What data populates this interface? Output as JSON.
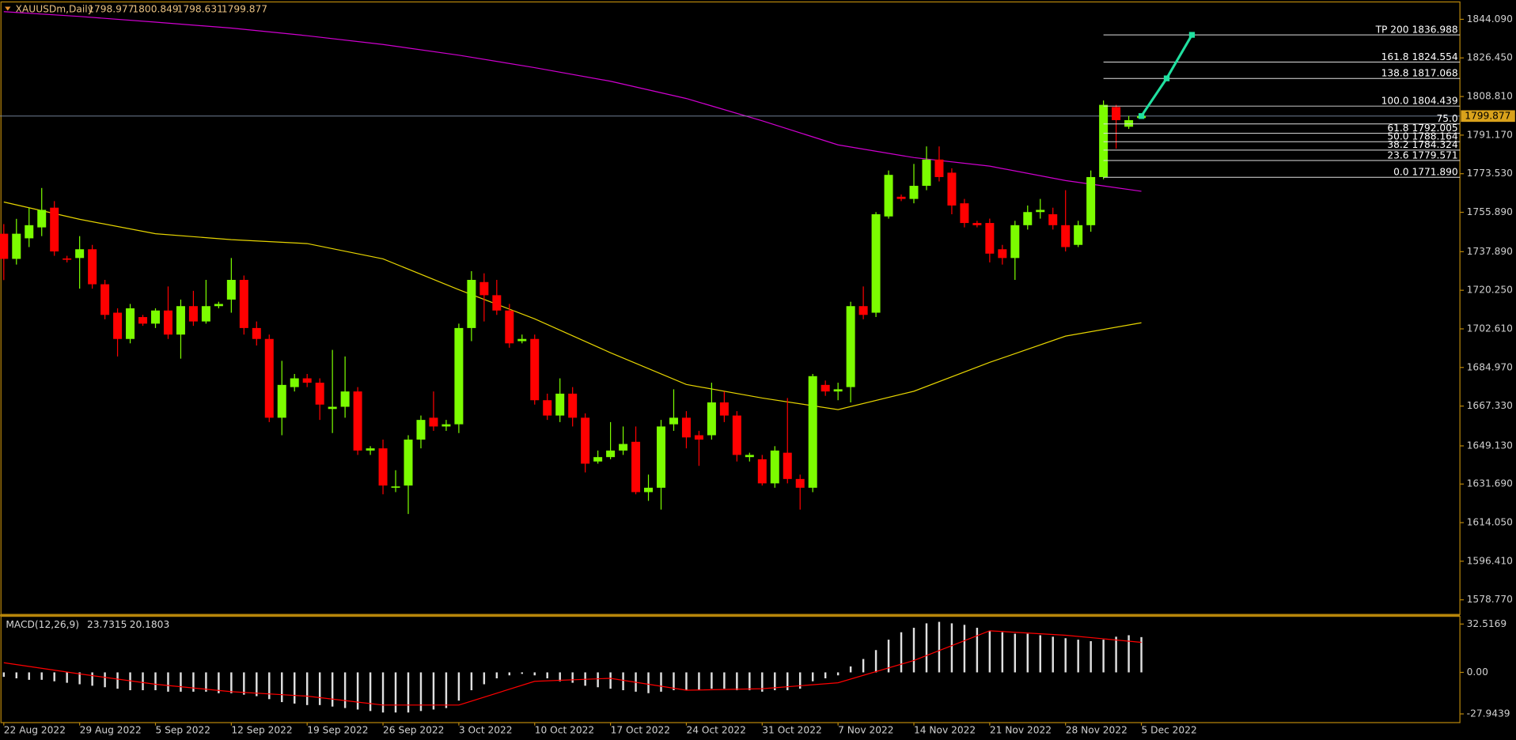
{
  "chart_data": {
    "type": "candlestick",
    "symbol": "XAUUSDm,Daily",
    "up_color": "#7cfc00",
    "down_color": "#ff0000",
    "xlim": [
      -0.3,
      115.2
    ],
    "ylim": [
      1572.1,
      1851.6
    ],
    "open": [
      1746.1,
      1734.6,
      1744,
      1749,
      1758,
      1734.8,
      1735,
      1739,
      1723,
      1710,
      1698,
      1708,
      1705,
      1711,
      1700,
      1713,
      1706,
      1713,
      1716,
      1725,
      1703,
      1698,
      1662,
      1676,
      1680,
      1678,
      1666,
      1667,
      1674,
      1647,
      1648,
      1630,
      1631,
      1652,
      1662,
      1658,
      1659,
      1703,
      1724,
      1718,
      1711,
      1697,
      1698,
      1670,
      1663,
      1673,
      1662,
      1642,
      1644,
      1647,
      1651,
      1628,
      1630,
      1659,
      1662,
      1654,
      1654,
      1669,
      1663,
      1644,
      1643,
      1632,
      1646,
      1634,
      1630,
      1677,
      1674,
      1676,
      1713,
      1710,
      1754,
      1763,
      1762,
      1768,
      1780,
      1774,
      1760,
      1751,
      1751,
      1739,
      1735,
      1750,
      1756,
      1755,
      1750,
      1741,
      1750,
      1772,
      1804,
      1795,
      1798.977
    ],
    "high": [
      1750.5,
      1752.9,
      1758,
      1767,
      1761,
      1736,
      1745,
      1741,
      1725,
      1712,
      1714,
      1709,
      1712,
      1722,
      1716,
      1720,
      1725,
      1715,
      1735,
      1727,
      1706,
      1700,
      1688,
      1682,
      1682,
      1680,
      1693,
      1690,
      1676,
      1649,
      1652,
      1638,
      1654,
      1663,
      1674,
      1661,
      1705,
      1729,
      1728,
      1725,
      1714,
      1700,
      1700,
      1673,
      1680,
      1676,
      1664,
      1647,
      1660,
      1658,
      1658,
      1636,
      1661,
      1675,
      1665,
      1656,
      1678,
      1674,
      1665,
      1646,
      1645,
      1649,
      1671,
      1636,
      1682,
      1679,
      1678,
      1715,
      1722,
      1756,
      1775,
      1764,
      1778,
      1786,
      1786,
      1776,
      1762,
      1752,
      1753,
      1741,
      1752,
      1759,
      1762,
      1758,
      1766,
      1752,
      1775,
      1807,
      1805,
      1800,
      1800.849
    ],
    "low": [
      1724.9,
      1732,
      1740,
      1745,
      1736,
      1733,
      1721,
      1721,
      1707,
      1690,
      1696,
      1704,
      1703,
      1698,
      1689,
      1704,
      1705,
      1712,
      1710,
      1700,
      1695,
      1660,
      1654,
      1674,
      1676,
      1661,
      1655,
      1662,
      1645,
      1645,
      1627,
      1628,
      1618,
      1648,
      1656,
      1656,
      1655,
      1697,
      1706,
      1709,
      1694,
      1696,
      1668,
      1661,
      1660,
      1658,
      1637,
      1641,
      1643,
      1645,
      1627,
      1624,
      1620,
      1656,
      1648,
      1640,
      1652,
      1660,
      1642,
      1642,
      1631,
      1630,
      1632,
      1620,
      1628,
      1672,
      1670,
      1669,
      1707,
      1708,
      1753,
      1761,
      1760,
      1766,
      1770,
      1755,
      1749,
      1749,
      1733,
      1732,
      1725,
      1748,
      1753,
      1748,
      1738,
      1740,
      1747,
      1771,
      1785,
      1794,
      1798.631
    ],
    "close": [
      1734.6,
      1746.1,
      1750,
      1757,
      1738,
      1734.2,
      1739,
      1723,
      1709,
      1698,
      1712,
      1705,
      1711,
      1700,
      1713,
      1706,
      1713,
      1714,
      1725,
      1703,
      1698,
      1662,
      1677,
      1680,
      1678,
      1668,
      1667,
      1674,
      1647,
      1648,
      1631,
      1630.6,
      1652,
      1661,
      1658,
      1659,
      1703,
      1725,
      1718,
      1711,
      1696,
      1698,
      1670,
      1663,
      1673,
      1662,
      1641,
      1644,
      1647,
      1650,
      1628,
      1630,
      1658,
      1662,
      1653,
      1652,
      1669,
      1663,
      1645,
      1645,
      1632,
      1647,
      1634,
      1630,
      1681,
      1674,
      1675,
      1713,
      1709,
      1755,
      1773,
      1762,
      1768,
      1780,
      1772,
      1759,
      1751,
      1750,
      1737,
      1735,
      1750,
      1756,
      1757,
      1750,
      1740,
      1750,
      1772,
      1805,
      1798,
      1798,
      1799.877
    ],
    "yticks": [
      {
        "value": 1844.09,
        "label": "1844.090"
      },
      {
        "value": 1826.45,
        "label": "1826.450"
      },
      {
        "value": 1808.81,
        "label": "1808.810"
      },
      {
        "value": 1791.17,
        "label": "1791.170"
      },
      {
        "value": 1773.53,
        "label": "1773.530"
      },
      {
        "value": 1755.89,
        "label": "1755.890"
      },
      {
        "value": 1737.89,
        "label": "1737.890"
      },
      {
        "value": 1720.25,
        "label": "1720.250"
      },
      {
        "value": 1702.61,
        "label": "1702.610"
      },
      {
        "value": 1684.97,
        "label": "1684.970"
      },
      {
        "value": 1667.33,
        "label": "1667.330"
      },
      {
        "value": 1649.13,
        "label": "1649.130"
      },
      {
        "value": 1631.69,
        "label": "1631.690"
      },
      {
        "value": 1614.05,
        "label": "1614.050"
      },
      {
        "value": 1596.41,
        "label": "1596.410"
      },
      {
        "value": 1578.77,
        "label": "1578.770"
      }
    ],
    "xticks": [
      {
        "value": 0,
        "label": "22 Aug 2022"
      },
      {
        "value": 6,
        "label": "29 Aug 2022"
      },
      {
        "value": 12,
        "label": "5 Sep 2022"
      },
      {
        "value": 18,
        "label": "12 Sep 2022"
      },
      {
        "value": 24,
        "label": "19 Sep 2022"
      },
      {
        "value": 30,
        "label": "26 Sep 2022"
      },
      {
        "value": 36,
        "label": "3 Oct 2022"
      },
      {
        "value": 42,
        "label": "10 Oct 2022"
      },
      {
        "value": 48,
        "label": "17 Oct 2022"
      },
      {
        "value": 54,
        "label": "24 Oct 2022"
      },
      {
        "value": 60,
        "label": "31 Oct 2022"
      },
      {
        "value": 66,
        "label": "7 Nov 2022"
      },
      {
        "value": 72,
        "label": "14 Nov 2022"
      },
      {
        "value": 78,
        "label": "21 Nov 2022"
      },
      {
        "value": 84,
        "label": "28 Nov 2022"
      },
      {
        "value": 90,
        "label": "5 Dec 2022"
      }
    ],
    "moving_averages": [
      {
        "color": "#e6d400",
        "x": [
          0,
          6,
          12,
          18,
          24,
          30,
          36,
          42,
          48,
          54,
          60,
          66,
          72,
          78,
          84,
          90
        ],
        "values": [
          1760.6,
          1752.7,
          1746.1,
          1743.4,
          1741.6,
          1734.6,
          1720.5,
          1707.2,
          1691.7,
          1677.2,
          1671.0,
          1665.7,
          1674.1,
          1687.3,
          1699.3,
          1705.4
        ]
      },
      {
        "color": "#d000d0",
        "x": [
          0,
          6,
          12,
          18,
          24,
          30,
          36,
          42,
          48,
          54,
          60,
          66,
          72,
          78,
          84,
          90
        ],
        "values": [
          1847.6,
          1845.4,
          1842.8,
          1840.1,
          1836.6,
          1832.6,
          1827.7,
          1822.0,
          1815.8,
          1807.9,
          1797.7,
          1786.7,
          1780.9,
          1777.0,
          1770.4,
          1765.5
        ]
      }
    ],
    "level_color": "#e0e0e0",
    "level_start": 87,
    "levels": [
      {
        "label": "TP 200 1836.988",
        "value": 1836.988
      },
      {
        "label": "161.8 1824.554",
        "value": 1824.554
      },
      {
        "label": "138.8 1817.068",
        "value": 1817.068
      },
      {
        "label": "100.0 1804.439",
        "value": 1804.439
      },
      {
        "label": "75.0",
        "value": 1796.3
      },
      {
        "label": "61.8 1792.005",
        "value": 1792.005
      },
      {
        "label": "50.0 1788.164",
        "value": 1788.164
      },
      {
        "label": "38.2 1784.324",
        "value": 1784.324
      },
      {
        "label": "23.6 1779.571",
        "value": 1779.571
      },
      {
        "label": "0.0 1771.890",
        "value": 1771.89
      }
    ],
    "price_line_color": "#8090a8",
    "price_tag_color": "#d9a21b",
    "projection": {
      "color": "#20e0a0",
      "x": [
        90,
        92,
        94
      ],
      "values": [
        1799.877,
        1817.1,
        1837.0
      ]
    },
    "macd": {
      "label": "MACD(12,26,9)",
      "color": "#e0e0e0",
      "y2lim": [
        -33.8,
        37.7
      ],
      "y2ticks": [
        32.5169,
        {
          "value": 0,
          "label": "0.00"
        },
        -27.9439
      ],
      "histogram": [
        -3,
        -4,
        -5,
        -5,
        -6,
        -7,
        -8,
        -9,
        -10,
        -11,
        -12,
        -12,
        -12,
        -13,
        -13,
        -13,
        -13,
        -14,
        -14,
        -15,
        -16,
        -18,
        -20,
        -21,
        -22,
        -22,
        -23,
        -24,
        -25,
        -26,
        -27,
        -27,
        -27,
        -26,
        -25,
        -24,
        -19,
        -12,
        -8,
        -4,
        -2,
        -1,
        -2,
        -4,
        -6,
        -7,
        -9,
        -10,
        -11,
        -12,
        -13,
        -14,
        -13,
        -12,
        -12,
        -12,
        -11,
        -11,
        -12,
        -12,
        -13,
        -12,
        -12,
        -11,
        -6,
        -4,
        -2,
        4,
        9,
        15,
        22,
        27,
        30,
        33,
        34,
        33,
        32,
        30,
        28,
        27,
        26,
        26,
        25,
        24,
        23,
        22,
        21,
        22,
        24,
        25,
        23.7315
      ],
      "signal": {
        "color": "#ff0000",
        "x": [
          0,
          6,
          12,
          18,
          24,
          30,
          36,
          42,
          48,
          54,
          60,
          66,
          72,
          78,
          84,
          90
        ],
        "values": [
          6.5,
          -1,
          -8,
          -13,
          -16,
          -22,
          -22,
          -6,
          -4,
          -12,
          -11,
          -7,
          8,
          28,
          25,
          20.1803
        ]
      }
    }
  }
}
